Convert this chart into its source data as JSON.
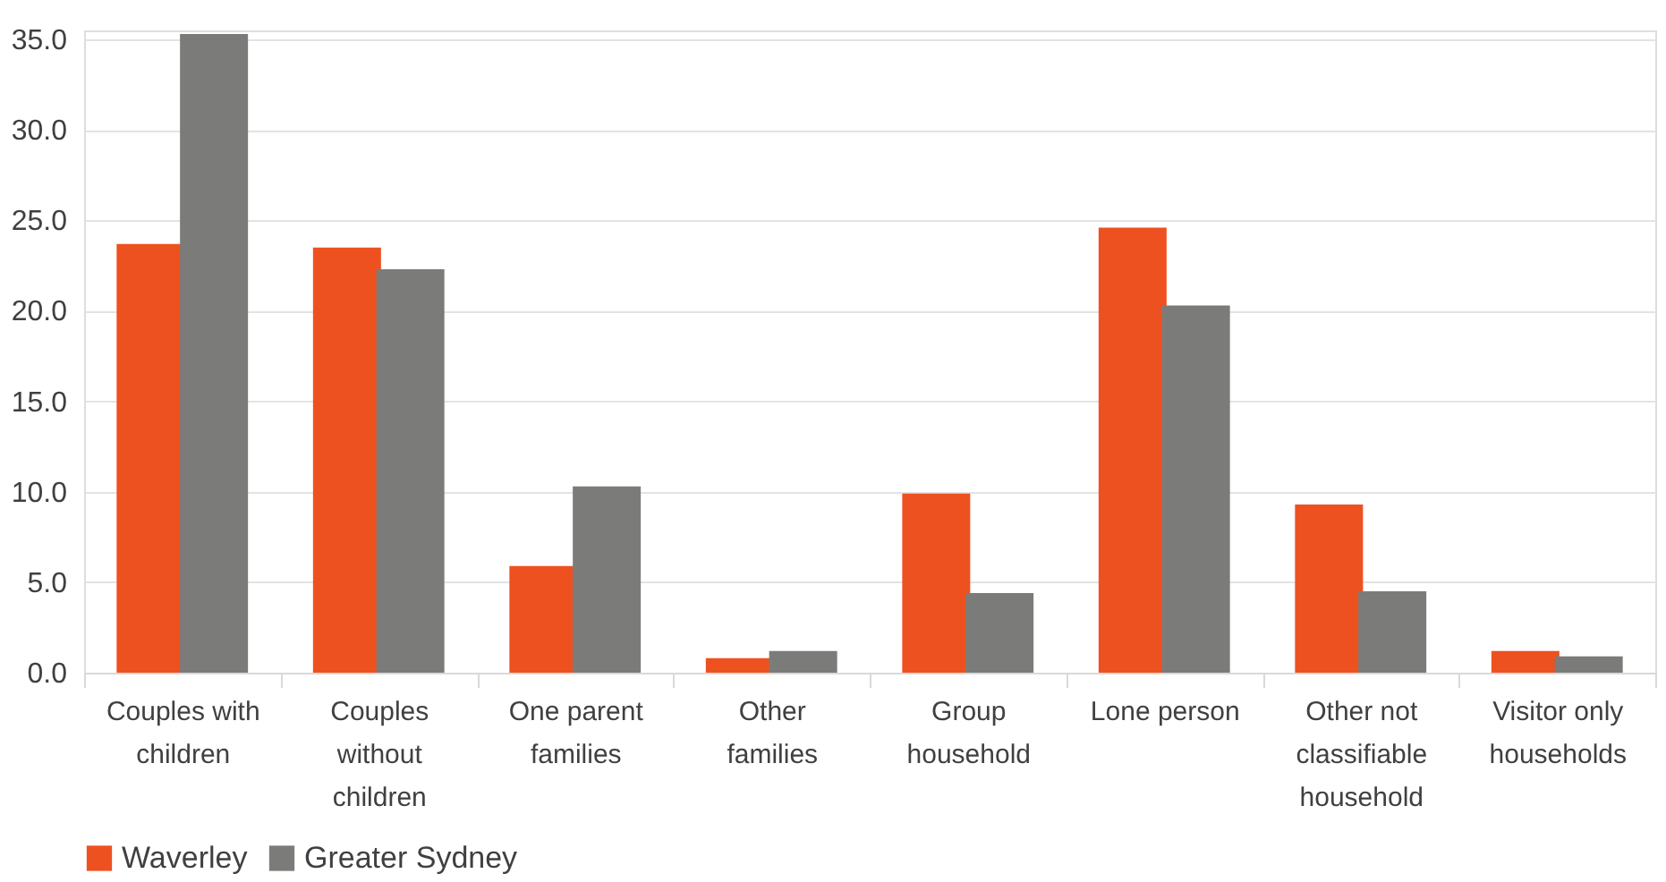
{
  "chart_data": {
    "type": "bar",
    "categories": [
      "Couples with children",
      "Couples without children",
      "One parent families",
      "Other families",
      "Group household",
      "Lone person",
      "Other not classifiable household",
      "Visitor only households"
    ],
    "series": [
      {
        "name": "Waverley",
        "color": "#ee5120",
        "values": [
          23.7,
          23.5,
          5.9,
          0.8,
          9.9,
          24.6,
          9.3,
          1.2
        ]
      },
      {
        "name": "Greater Sydney",
        "color": "#7b7c7a",
        "values": [
          35.3,
          22.3,
          10.3,
          1.2,
          4.4,
          20.3,
          4.5,
          0.9
        ]
      }
    ],
    "ylim": [
      0,
      35.5
    ],
    "yticks": [
      {
        "value": 0,
        "label": "0.0"
      },
      {
        "value": 5,
        "label": "5.0"
      },
      {
        "value": 10,
        "label": "10.0"
      },
      {
        "value": 15,
        "label": "15.0"
      },
      {
        "value": 20,
        "label": "20.0"
      },
      {
        "value": 25,
        "label": "25.0"
      },
      {
        "value": 30,
        "label": "30.0"
      },
      {
        "value": 35,
        "label": "35.0"
      }
    ],
    "grid": "y",
    "legend": "bottom"
  }
}
